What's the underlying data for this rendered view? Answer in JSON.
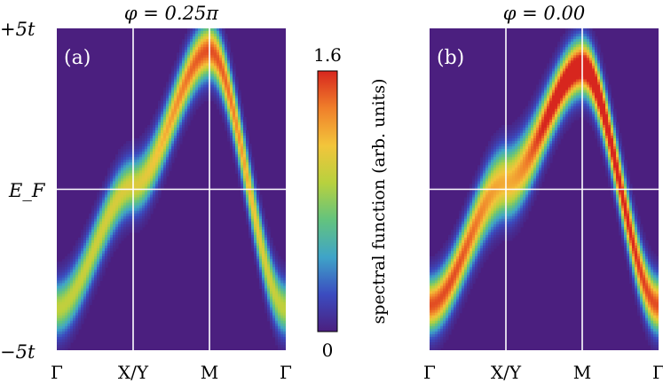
{
  "chart_data": [
    {
      "type": "heatmap",
      "panel_label": "(a)",
      "title": "φ = 0.25π",
      "x_ticks": [
        "Γ",
        "X/Y",
        "M",
        "Γ"
      ],
      "y_ticks": [
        "+5t",
        "E_F",
        "−5t"
      ],
      "ylim": [
        -5,
        5
      ],
      "grid": "white lines at X/Y, M and E_F",
      "bands": [
        {
          "k": [
            0,
            1,
            2,
            3
          ],
          "E": [
            -3.7,
            0.1,
            4.3,
            -3.7
          ],
          "peak": [
            0.95,
            1.05,
            1.5,
            0.95
          ]
        }
      ]
    },
    {
      "type": "heatmap",
      "panel_label": "(b)",
      "title": "φ = 0.00",
      "x_ticks": [
        "Γ",
        "X/Y",
        "M",
        "Γ"
      ],
      "ylim": [
        -5,
        5
      ],
      "grid": "white lines at X/Y, M and E_F",
      "bands": [
        {
          "k": [
            0,
            1,
            2,
            3
          ],
          "E": [
            -3.6,
            0.6,
            3.8,
            -3.6
          ],
          "peak": [
            0.75,
            0.8,
            0.95,
            0.75
          ]
        },
        {
          "k": [
            0,
            1,
            2,
            3
          ],
          "E": [
            -3.6,
            -0.2,
            3.8,
            -3.6
          ],
          "peak": [
            0.75,
            0.8,
            0.95,
            0.75
          ]
        }
      ]
    }
  ],
  "colorbar": {
    "label": "spectral function (arb. units)",
    "min_label": "0",
    "max_label": "1.6",
    "range": [
      0,
      1.6
    ],
    "colors": [
      "#4b1f7f",
      "#3b4cc0",
      "#3fa4c8",
      "#63c37e",
      "#b8d13e",
      "#f3c53b",
      "#f07f2a",
      "#d7261e"
    ]
  }
}
